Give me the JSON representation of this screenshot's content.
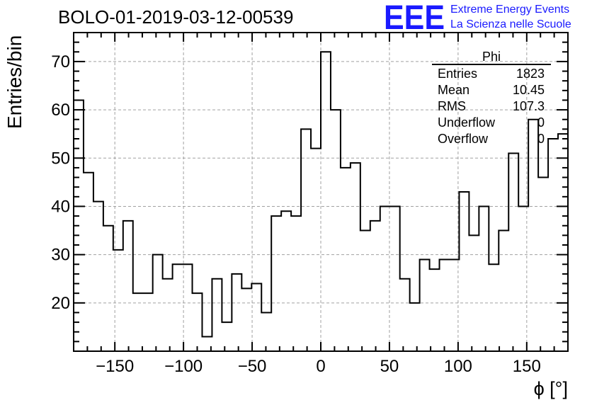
{
  "chart_data": {
    "type": "histogram",
    "title": "BOLO-01-2019-03-12-00539",
    "xlabel": "ϕ [°]",
    "ylabel": "Entries/bin",
    "xlim": [
      -180,
      180
    ],
    "ylim": [
      10,
      76
    ],
    "grid": true,
    "bin_width": 7.2,
    "x_ticks": [
      -150,
      -100,
      -50,
      0,
      50,
      100,
      150
    ],
    "x_tick_labels": [
      "−150",
      "−100",
      "−50",
      "0",
      "50",
      "100",
      "150"
    ],
    "y_ticks": [
      20,
      30,
      40,
      50,
      60,
      70
    ],
    "y_tick_labels": [
      "20",
      "30",
      "40",
      "50",
      "60",
      "70"
    ],
    "color": "#000000",
    "series": [
      {
        "values": [
          62,
          47,
          41,
          36,
          31,
          37,
          22,
          22,
          30,
          25,
          28,
          28,
          22,
          13,
          25,
          16,
          26,
          23,
          24,
          18,
          38,
          39,
          38,
          56,
          52,
          72,
          60,
          48,
          49,
          35,
          37,
          40,
          40,
          25,
          20,
          29,
          27,
          29,
          29,
          43,
          34,
          40,
          28,
          35,
          51,
          40,
          58,
          46,
          54,
          55
        ]
      }
    ],
    "stats_box": {
      "title": "Phi",
      "placement": "top-right",
      "rows": [
        {
          "label": "Entries",
          "value": "1823"
        },
        {
          "label": "Mean",
          "value": "10.45"
        },
        {
          "label": "RMS",
          "value": "107.3"
        },
        {
          "label": "Underflow",
          "value": "0"
        },
        {
          "label": "Overflow",
          "value": "0"
        }
      ]
    }
  },
  "logo": {
    "mark": "EEE",
    "line1": "Extreme Energy Events",
    "line2": "La Scienza nelle Scuole",
    "color": "#1a1aff"
  }
}
